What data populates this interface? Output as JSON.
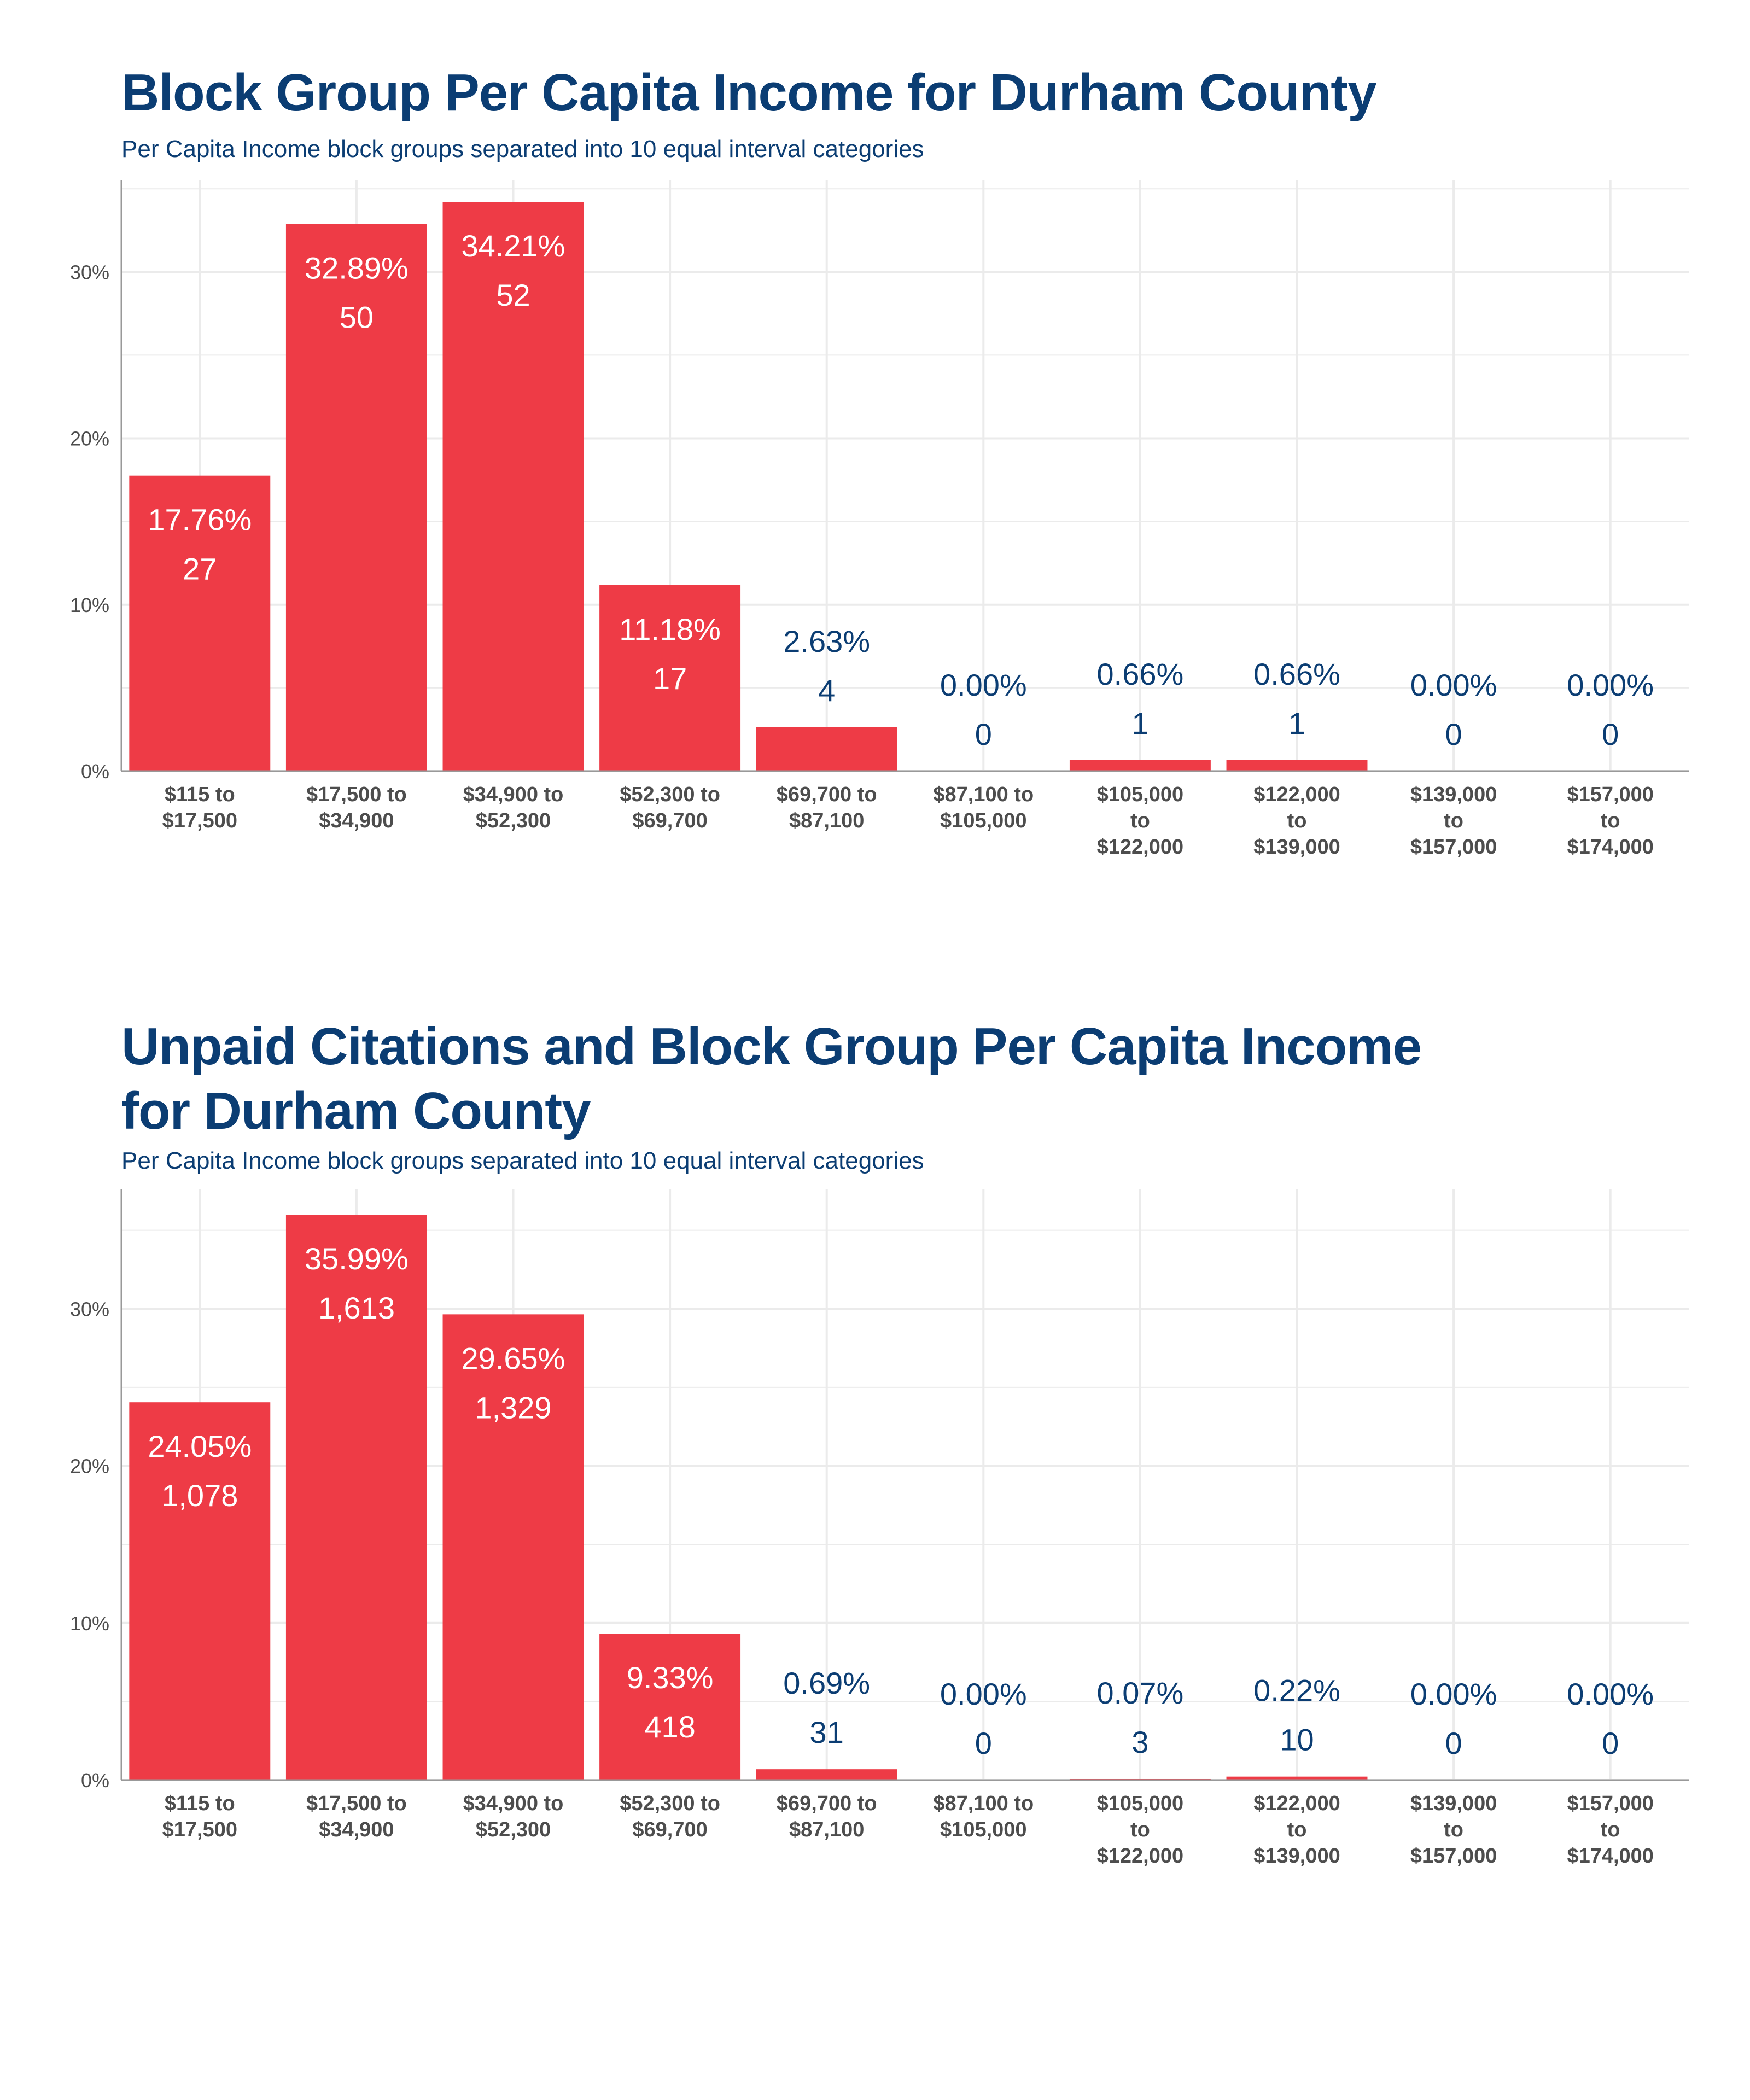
{
  "chart_data": [
    {
      "type": "bar",
      "title": "Block Group Per Capita Income for Durham County",
      "subtitle": "Per Capita Income block groups separated into 10 equal interval categories",
      "categories": [
        [
          "$115 to",
          "$17,500"
        ],
        [
          "$17,500 to",
          "$34,900"
        ],
        [
          "$34,900 to",
          "$52,300"
        ],
        [
          "$52,300 to",
          "$69,700"
        ],
        [
          "$69,700 to",
          "$87,100"
        ],
        [
          "$87,100 to",
          "$105,000"
        ],
        [
          "$105,000",
          "to",
          "$122,000"
        ],
        [
          "$122,000",
          "to",
          "$139,000"
        ],
        [
          "$139,000",
          "to",
          "$157,000"
        ],
        [
          "$157,000",
          "to",
          "$174,000"
        ]
      ],
      "values": [
        17.76,
        32.89,
        34.21,
        11.18,
        2.63,
        0.0,
        0.66,
        0.66,
        0.0,
        0.0
      ],
      "value_labels": [
        "17.76%",
        "32.89%",
        "34.21%",
        "11.18%",
        "2.63%",
        "0.00%",
        "0.66%",
        "0.66%",
        "0.00%",
        "0.00%"
      ],
      "count_labels": [
        "27",
        "50",
        "52",
        "17",
        "4",
        "0",
        "1",
        "1",
        "0",
        "0"
      ],
      "yticks": [
        0,
        10,
        20,
        30
      ],
      "ytick_labels": [
        "0%",
        "10%",
        "20%",
        "30%"
      ],
      "ylim": [
        0,
        35.5
      ],
      "xlabel": "",
      "ylabel": "",
      "grid": true
    },
    {
      "type": "bar",
      "title": "Unpaid Citations and Block Group Per Capita Income for Durham County",
      "subtitle": "Per Capita Income block groups separated into 10 equal interval categories",
      "categories": [
        [
          "$115 to",
          "$17,500"
        ],
        [
          "$17,500 to",
          "$34,900"
        ],
        [
          "$34,900 to",
          "$52,300"
        ],
        [
          "$52,300 to",
          "$69,700"
        ],
        [
          "$69,700 to",
          "$87,100"
        ],
        [
          "$87,100 to",
          "$105,000"
        ],
        [
          "$105,000",
          "to",
          "$122,000"
        ],
        [
          "$122,000",
          "to",
          "$139,000"
        ],
        [
          "$139,000",
          "to",
          "$157,000"
        ],
        [
          "$157,000",
          "to",
          "$174,000"
        ]
      ],
      "values": [
        24.05,
        35.99,
        29.65,
        9.33,
        0.69,
        0.0,
        0.07,
        0.22,
        0.0,
        0.0
      ],
      "value_labels": [
        "24.05%",
        "35.99%",
        "29.65%",
        "9.33%",
        "0.69%",
        "0.00%",
        "0.07%",
        "0.22%",
        "0.00%",
        "0.00%"
      ],
      "count_labels": [
        "1,078",
        "1,613",
        "1,329",
        "418",
        "31",
        "0",
        "3",
        "10",
        "0",
        "0"
      ],
      "yticks": [
        0,
        10,
        20,
        30
      ],
      "ytick_labels": [
        "0%",
        "10%",
        "20%",
        "30%"
      ],
      "ylim": [
        0,
        37.6
      ],
      "xlabel": "",
      "ylabel": "",
      "grid": true
    }
  ],
  "colors": {
    "bar": "#ee3b46",
    "title": "#0b3d73",
    "label_inside": "#ffffff",
    "label_outside": "#0b3d73",
    "grid": "#ebebeb",
    "axis_text": "#4d4d4d"
  }
}
